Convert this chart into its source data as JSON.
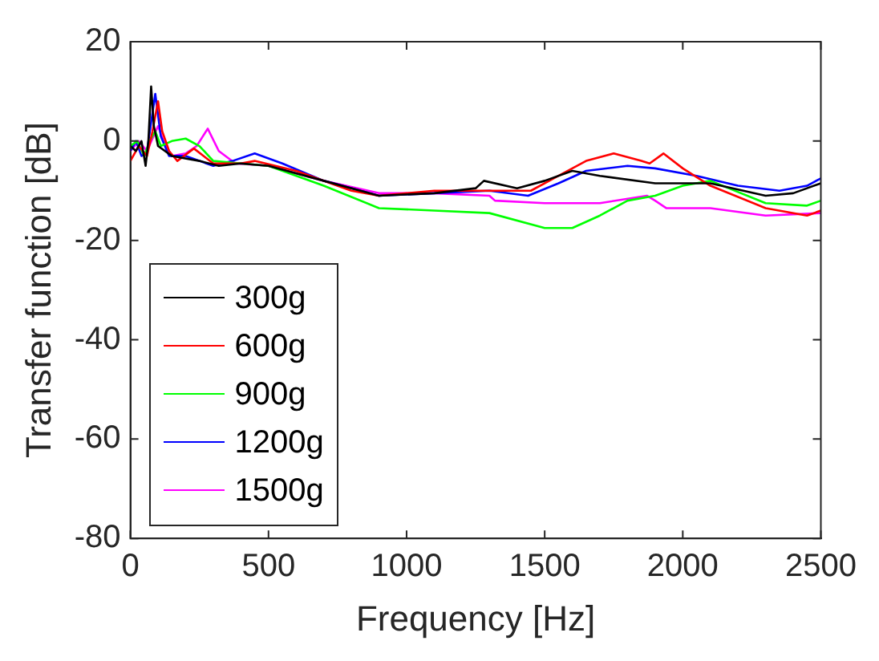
{
  "chart_data": {
    "type": "line",
    "xlabel": "Frequency [Hz]",
    "ylabel": "Transfer function [dB]",
    "xlim": [
      0,
      2500
    ],
    "xticks": [
      0,
      500,
      1000,
      1500,
      2000,
      2500
    ],
    "ylim": [
      -80,
      20
    ],
    "yticks": [
      -80,
      -60,
      -40,
      -20,
      0,
      20
    ],
    "grid": false,
    "legend": "bottom left",
    "marker": "none",
    "line_style": "solid",
    "series": [
      {
        "name": "300g",
        "color": "#000000",
        "x": [
          0,
          20,
          40,
          55,
          65,
          75,
          85,
          100,
          150,
          250,
          320,
          400,
          500,
          700,
          900,
          1100,
          1250,
          1280,
          1400,
          1500,
          1600,
          1700,
          1900,
          2100,
          2300,
          2400,
          2500
        ],
        "values": [
          -1,
          -2,
          0,
          -5,
          0,
          11,
          3,
          -1,
          -3,
          -4,
          -5,
          -4.5,
          -5,
          -8,
          -11,
          -10.5,
          -9.5,
          -8,
          -9.5,
          -8,
          -6,
          -7,
          -8.5,
          -8.5,
          -11,
          -10.5,
          -8.5
        ]
      },
      {
        "name": "600g",
        "color": "#ff0000",
        "x": [
          0,
          30,
          60,
          80,
          100,
          115,
          140,
          170,
          230,
          300,
          400,
          450,
          600,
          800,
          900,
          1100,
          1300,
          1450,
          1550,
          1650,
          1750,
          1850,
          1880,
          1930,
          2000,
          2100,
          2300,
          2450,
          2500
        ],
        "values": [
          -4,
          -1,
          -3,
          2,
          8,
          2,
          -2,
          -4,
          -1.5,
          -4.5,
          -4.5,
          -4,
          -6,
          -10,
          -11,
          -10,
          -10,
          -10,
          -7,
          -4,
          -2.5,
          -4,
          -4.5,
          -2.5,
          -5.5,
          -9,
          -13.5,
          -15,
          -14
        ]
      },
      {
        "name": "900g",
        "color": "#00ff00",
        "x": [
          0,
          25,
          50,
          70,
          90,
          110,
          150,
          200,
          250,
          300,
          400,
          500,
          700,
          900,
          1100,
          1300,
          1500,
          1600,
          1700,
          1800,
          1900,
          2000,
          2100,
          2300,
          2450,
          2500
        ],
        "values": [
          -1,
          0,
          -3,
          0,
          2,
          -1,
          0,
          0.5,
          -1,
          -4,
          -4.5,
          -5,
          -9,
          -13.5,
          -14,
          -14.5,
          -17.5,
          -17.5,
          -15,
          -12,
          -11,
          -9,
          -8,
          -12.5,
          -13,
          -12
        ]
      },
      {
        "name": "1200g",
        "color": "#0000ff",
        "x": [
          0,
          20,
          40,
          60,
          90,
          110,
          140,
          200,
          300,
          370,
          450,
          550,
          700,
          900,
          1100,
          1300,
          1440,
          1550,
          1650,
          1800,
          1900,
          2050,
          2200,
          2350,
          2450,
          2500
        ],
        "values": [
          -2,
          0,
          -3,
          -2,
          9.5,
          1,
          -3,
          -3,
          -5,
          -4,
          -2.5,
          -4.5,
          -8,
          -11,
          -10.5,
          -10,
          -11,
          -8.5,
          -6,
          -5,
          -5.5,
          -7,
          -9,
          -10,
          -9,
          -7.5
        ]
      },
      {
        "name": "1500g",
        "color": "#ff00ff",
        "x": [
          0,
          30,
          60,
          100,
          120,
          150,
          200,
          240,
          280,
          320,
          380,
          500,
          700,
          900,
          1100,
          1300,
          1320,
          1500,
          1700,
          1870,
          1900,
          1940,
          2100,
          2300,
          2500
        ],
        "values": [
          -2,
          0,
          -2,
          3,
          0,
          -3,
          -2.5,
          -1,
          2.5,
          -2,
          -4.5,
          -5,
          -8,
          -10.5,
          -10.5,
          -11,
          -12,
          -12.5,
          -12.5,
          -11,
          -12,
          -13.5,
          -13.5,
          -15,
          -14.5
        ]
      }
    ]
  }
}
